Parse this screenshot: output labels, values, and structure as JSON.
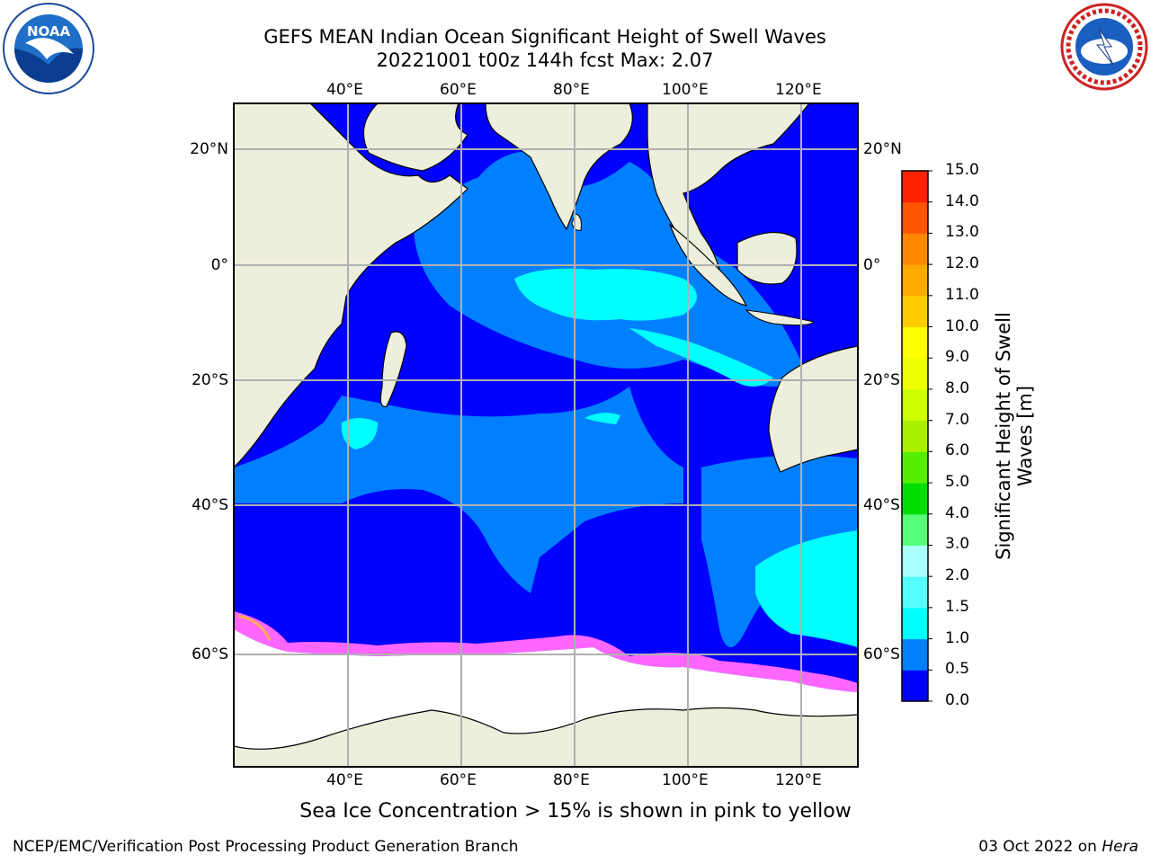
{
  "header": {
    "title_line1": "GEFS MEAN Indian Ocean Significant Height of Swell Waves",
    "title_line2": "20221001 t00z 144h fcst   Max: 2.07"
  },
  "logos": {
    "left": {
      "name": "NOAA",
      "text": "NOAA"
    },
    "right": {
      "name": "NATIONAL WEATHER SERVICE"
    }
  },
  "map": {
    "lon_labels": [
      "40°E",
      "60°E",
      "80°E",
      "100°E",
      "120°E"
    ],
    "lat_labels": [
      "20°N",
      "0°",
      "20°S",
      "40°S",
      "60°S"
    ],
    "colors": {
      "land": "#eeeedd",
      "sea_ice": "#ffffff",
      "swell_0_05": "#0000ff",
      "swell_05_1": "#0080ff",
      "swell_1_15": "#00ffff",
      "ice_edge": "#ff66ff"
    }
  },
  "colorbar": {
    "label": "Significant Height of Swell Waves [m]",
    "ticks": [
      "0.0",
      "0.5",
      "1.0",
      "1.5",
      "2.0",
      "3.0",
      "4.0",
      "5.0",
      "6.0",
      "7.0",
      "8.0",
      "9.0",
      "10.0",
      "11.0",
      "12.0",
      "13.0",
      "14.0",
      "15.0"
    ],
    "colors": [
      "#0000ff",
      "#0080ff",
      "#00ffff",
      "#55ffff",
      "#aaffff",
      "#55ff77",
      "#00dd00",
      "#55ee00",
      "#aaee00",
      "#ccff00",
      "#eeff00",
      "#ffff00",
      "#ffcc00",
      "#ffaa00",
      "#ff8800",
      "#ff5500",
      "#ff2200"
    ]
  },
  "caption": "Sea Ice Concentration > 15% is shown in pink to yellow",
  "footer": {
    "left": "NCEP/EMC/Verification Post Processing Product Generation Branch",
    "date": "03 Oct 2022 on ",
    "host": "Hera"
  }
}
